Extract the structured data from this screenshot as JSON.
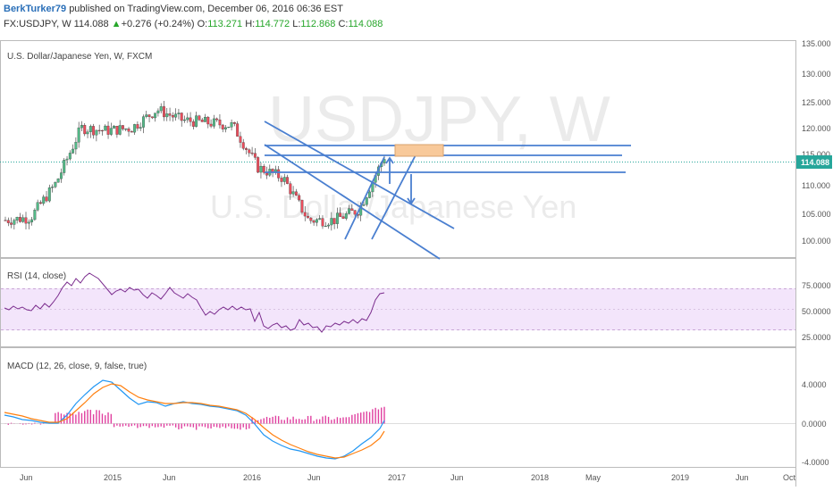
{
  "header": {
    "author": "BerkTurker79",
    "published_text": "published on TradingView.com, December 06, 2016 06:36 EST",
    "symbol": "FX:USDJPY, W",
    "last": "114.088",
    "change_arrow": "▲",
    "change": "+0.276 (+0.24%)",
    "open_label": "O:",
    "open": "113.271",
    "high_label": "H:",
    "high": "114.772",
    "low_label": "L:",
    "low": "112.868",
    "close_label": "C:",
    "close": "114.088"
  },
  "main_pane": {
    "label": "U.S. Dollar/Japanese Yen, W, FXCM",
    "watermark_symbol": "USDJPY, W",
    "watermark_name": "U.S. Dollar/Japanese Yen",
    "price_ticks": [
      "135.000",
      "130.000",
      "125.000",
      "120.000",
      "115.000",
      "110.000",
      "105.000",
      "100.000"
    ],
    "current_price_label": "114.088"
  },
  "rsi_pane": {
    "label": "RSI (14, close)",
    "ticks": [
      "75.0000",
      "50.0000",
      "25.0000"
    ]
  },
  "macd_pane": {
    "label": "MACD (12, 26, close, 9, false, true)",
    "ticks": [
      "4.0000",
      "0.0000",
      "-4.0000"
    ]
  },
  "time_axis": {
    "labels": [
      "Jun",
      "2015",
      "Jun",
      "2016",
      "Jun",
      "2017",
      "Jun",
      "2018",
      "May",
      "2019",
      "Jun",
      "Oct"
    ]
  },
  "colors": {
    "up_candle": "#53b987",
    "down_candle": "#eb4d5c",
    "candle_wick": "#333333",
    "trendline": "#4a7fd0",
    "rsi_line": "#7b2d8e",
    "rsi_band": "#f3e5fb",
    "macd_line": "#2196f3",
    "signal_line": "#ff7f0e",
    "histogram": "#e040a0",
    "price_tag": "#26a69a",
    "zone_fill": "#f8c99a"
  },
  "chart_data": {
    "type": "candlestick",
    "xlabel": "",
    "ylabel": "",
    "ylim": [
      95,
      136
    ],
    "x": [
      "2014-06",
      "2014-08",
      "2014-10",
      "2014-12",
      "2015-02",
      "2015-04",
      "2015-06",
      "2015-08",
      "2015-10",
      "2015-12",
      "2016-02",
      "2016-04",
      "2016-06",
      "2016-08",
      "2016-10",
      "2016-12"
    ],
    "close_approx": [
      102,
      102.5,
      109,
      119.5,
      119,
      119.5,
      123,
      121,
      120.5,
      120,
      112,
      110,
      102,
      102,
      104,
      114.1
    ]
  }
}
